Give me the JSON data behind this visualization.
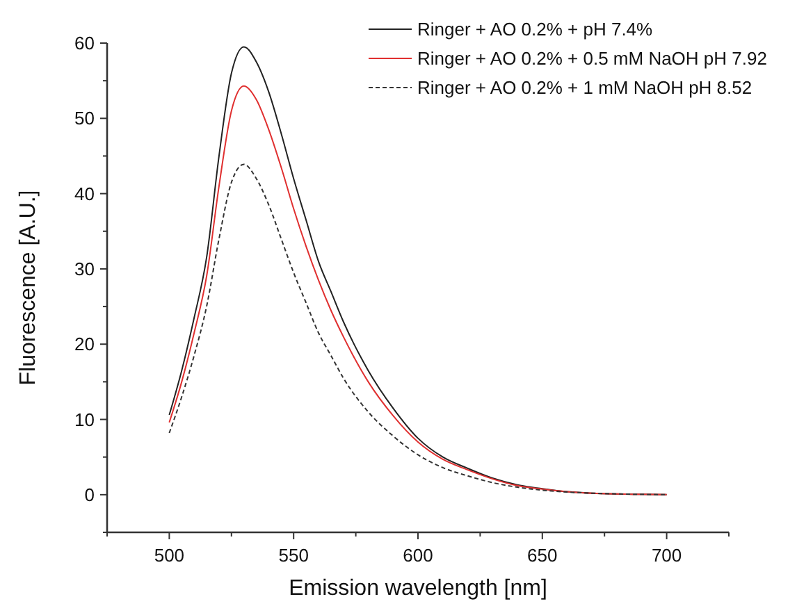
{
  "chart_data": {
    "type": "line",
    "xlabel": "Emission wavelength [nm]",
    "ylabel": "Fluorescence [A.U.]",
    "x": [
      500,
      505,
      510,
      515,
      520,
      525,
      530,
      535,
      540,
      545,
      550,
      555,
      560,
      565,
      570,
      580,
      590,
      600,
      610,
      620,
      630,
      640,
      650,
      660,
      670,
      680,
      690,
      700
    ],
    "series": [
      {
        "name": "Ringer + AO 0.2% + pH 7.4%",
        "color": "#222222",
        "line_style": "solid",
        "values": [
          10.6,
          16.5,
          23.5,
          31.5,
          45,
          56,
          59.5,
          57.5,
          53.5,
          48,
          42,
          36.5,
          31,
          27,
          23,
          16.5,
          11.5,
          7.5,
          5,
          3.5,
          2.2,
          1.3,
          0.8,
          0.4,
          0.2,
          0.1,
          0.05,
          0
        ]
      },
      {
        "name": "Ringer + AO 0.2% + 0.5 mM NaOH pH 7.92",
        "color": "#e03030",
        "line_style": "solid",
        "values": [
          9.6,
          15,
          21.5,
          29,
          41,
          51,
          54.3,
          52.5,
          48.5,
          43.5,
          38,
          33,
          28.5,
          24.5,
          21,
          15,
          10.5,
          7,
          4.7,
          3.3,
          2.1,
          1.2,
          0.75,
          0.4,
          0.2,
          0.1,
          0.05,
          0
        ]
      },
      {
        "name": "Ringer + AO 0.2% + 1 mM NaOH pH 8.52",
        "color": "#333333",
        "line_style": "dashed",
        "values": [
          8.2,
          13,
          18.5,
          25,
          34,
          41.5,
          43.9,
          42,
          38.5,
          34,
          29.5,
          25.5,
          21.5,
          18.5,
          15.5,
          11,
          7.8,
          5.3,
          3.6,
          2.5,
          1.6,
          1,
          0.6,
          0.35,
          0.2,
          0.1,
          0.05,
          0
        ]
      }
    ],
    "xlim": [
      475,
      725
    ],
    "ylim": [
      -5,
      60
    ],
    "xticks": [
      {
        "value": 475,
        "label": null
      },
      500,
      {
        "value": 525,
        "label": null
      },
      550,
      {
        "value": 575,
        "label": null
      },
      600,
      {
        "value": 625,
        "label": null
      },
      650,
      {
        "value": 675,
        "label": null
      },
      700,
      {
        "value": 725,
        "label": null
      }
    ],
    "yticks": [
      {
        "value": -5,
        "label": null
      },
      0,
      {
        "value": 5,
        "label": null
      },
      10,
      {
        "value": 15,
        "label": null
      },
      20,
      {
        "value": 25,
        "label": null
      },
      30,
      {
        "value": 35,
        "label": null
      },
      40,
      {
        "value": 45,
        "label": null
      },
      50,
      {
        "value": 55,
        "label": null
      },
      60
    ],
    "grid": false,
    "legend": "top right",
    "marker": "none"
  }
}
